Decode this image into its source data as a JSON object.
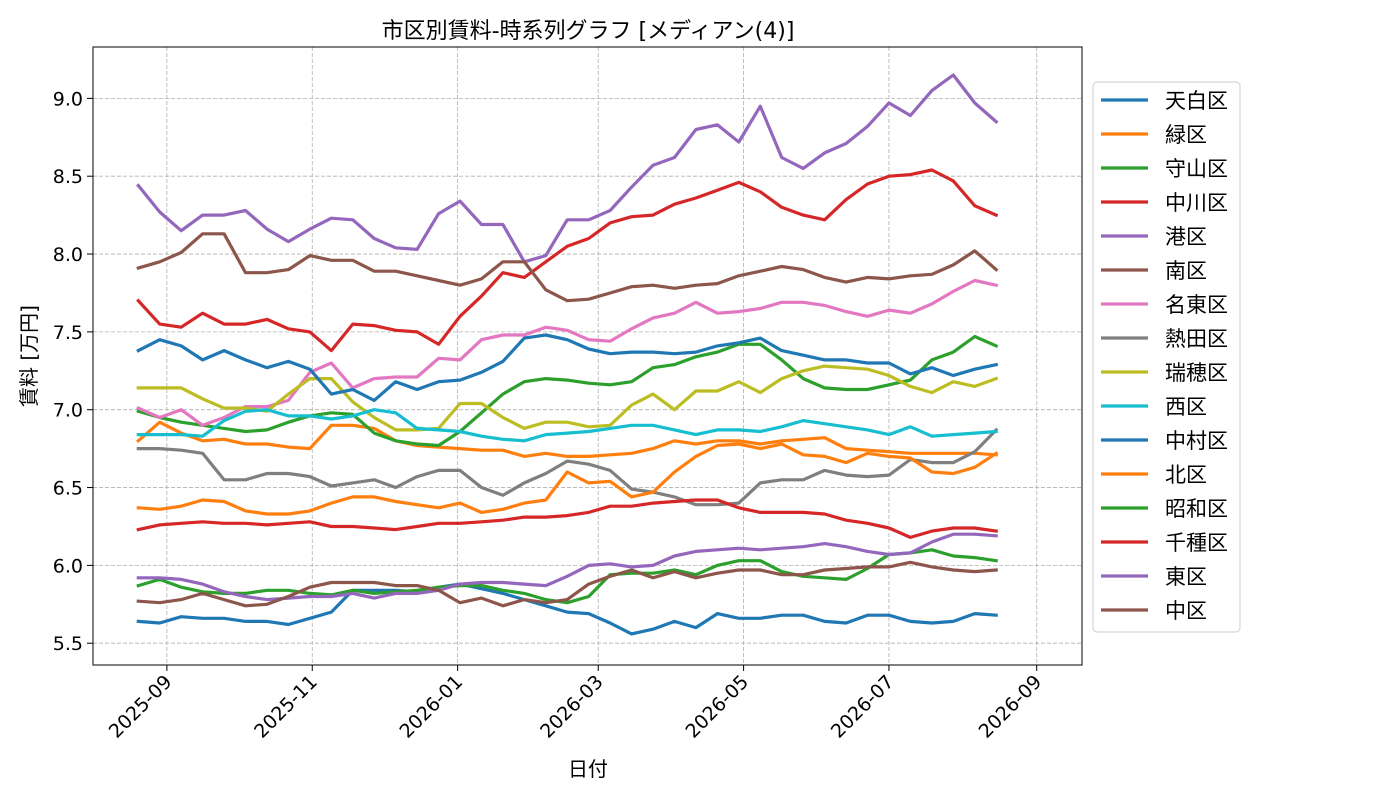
{
  "chart_data": {
    "type": "line",
    "title": "市区別賃料-時系列グラフ [メディアン(4)]",
    "xlabel": "日付",
    "ylabel": "賃料 [万円]",
    "x_ticks": [
      "2025-09",
      "2025-11",
      "2026-01",
      "2026-03",
      "2026-05",
      "2026-07",
      "2026-09"
    ],
    "y_ticks": [
      "5.5",
      "6.0",
      "6.5",
      "7.0",
      "7.5",
      "8.0",
      "8.5",
      "9.0"
    ],
    "xlim": [
      "2025-08-01",
      "2026-09-20"
    ],
    "ylim": [
      5.36,
      9.33
    ],
    "grid": true,
    "legend_position": "right-outside",
    "x": [
      "2025-08-20",
      "2025-08-29",
      "2025-09-07",
      "2025-09-16",
      "2025-09-25",
      "2025-10-04",
      "2025-10-13",
      "2025-10-22",
      "2025-10-31",
      "2025-11-09",
      "2025-11-18",
      "2025-11-27",
      "2025-12-06",
      "2025-12-15",
      "2025-12-24",
      "2026-01-02",
      "2026-01-11",
      "2026-01-20",
      "2026-01-29",
      "2026-02-07",
      "2026-02-16",
      "2026-02-25",
      "2026-03-06",
      "2026-03-15",
      "2026-03-24",
      "2026-04-02",
      "2026-04-11",
      "2026-04-20",
      "2026-04-29",
      "2026-05-08",
      "2026-05-17",
      "2026-05-26",
      "2026-06-04",
      "2026-06-13",
      "2026-06-22",
      "2026-07-01",
      "2026-07-10",
      "2026-07-19",
      "2026-07-28",
      "2026-08-06",
      "2026-08-15"
    ],
    "series": [
      {
        "name": "天白区",
        "color": "#1f77b4",
        "values": [
          5.64,
          5.63,
          5.67,
          5.66,
          5.66,
          5.64,
          5.64,
          5.62,
          5.66,
          5.7,
          5.84,
          5.84,
          5.84,
          5.83,
          5.86,
          5.88,
          5.85,
          5.82,
          5.78,
          5.74,
          5.7,
          5.69,
          5.63,
          5.56,
          5.59,
          5.64,
          5.6,
          5.69,
          5.66,
          5.66,
          5.68,
          5.68,
          5.64,
          5.63,
          5.68,
          5.68,
          5.64,
          5.63,
          5.64,
          5.69,
          5.68
        ]
      },
      {
        "name": "緑区",
        "color": "#ff7f0e",
        "values": [
          6.8,
          6.92,
          6.85,
          6.8,
          6.81,
          6.78,
          6.78,
          6.76,
          6.75,
          6.9,
          6.9,
          6.88,
          6.8,
          6.77,
          6.76,
          6.75,
          6.74,
          6.74,
          6.7,
          6.72,
          6.7,
          6.7,
          6.71,
          6.72,
          6.75,
          6.8,
          6.78,
          6.8,
          6.8,
          6.78,
          6.8,
          6.81,
          6.82,
          6.75,
          6.74,
          6.73,
          6.72,
          6.72,
          6.72,
          6.72,
          6.71
        ]
      },
      {
        "name": "守山区",
        "color": "#2ca02c",
        "values": [
          6.99,
          6.95,
          6.92,
          6.9,
          6.88,
          6.86,
          6.87,
          6.92,
          6.96,
          6.98,
          6.97,
          6.85,
          6.8,
          6.78,
          6.77,
          6.86,
          6.98,
          7.1,
          7.18,
          7.2,
          7.19,
          7.17,
          7.16,
          7.18,
          7.27,
          7.29,
          7.34,
          7.37,
          7.42,
          7.42,
          7.32,
          7.2,
          7.14,
          7.13,
          7.13,
          7.16,
          7.19,
          7.32,
          7.37,
          7.47,
          7.41
        ]
      },
      {
        "name": "中川区",
        "color": "#d62728",
        "values": [
          7.7,
          7.55,
          7.53,
          7.62,
          7.55,
          7.55,
          7.58,
          7.52,
          7.5,
          7.38,
          7.55,
          7.54,
          7.51,
          7.5,
          7.42,
          7.6,
          7.73,
          7.88,
          7.85,
          7.95,
          8.05,
          8.1,
          8.2,
          8.24,
          8.25,
          8.32,
          8.36,
          8.41,
          8.46,
          8.4,
          8.3,
          8.25,
          8.22,
          8.35,
          8.45,
          8.5,
          8.51,
          8.54,
          8.47,
          8.31,
          8.25
        ]
      },
      {
        "name": "港区",
        "color": "#9467bd",
        "values": [
          8.44,
          8.27,
          8.15,
          8.25,
          8.25,
          8.28,
          8.16,
          8.08,
          8.16,
          8.23,
          8.22,
          8.1,
          8.04,
          8.03,
          8.26,
          8.34,
          8.19,
          8.19,
          7.95,
          7.99,
          8.22,
          8.22,
          8.28,
          8.43,
          8.57,
          8.62,
          8.8,
          8.83,
          8.72,
          8.95,
          8.62,
          8.55,
          8.65,
          8.71,
          8.82,
          8.97,
          8.89,
          9.05,
          9.15,
          8.97,
          8.85
        ]
      },
      {
        "name": "南区",
        "color": "#8c564b",
        "values": [
          7.91,
          7.95,
          8.01,
          8.13,
          8.13,
          7.88,
          7.88,
          7.9,
          7.99,
          7.96,
          7.96,
          7.89,
          7.89,
          7.86,
          7.83,
          7.8,
          7.84,
          7.95,
          7.95,
          7.77,
          7.7,
          7.71,
          7.75,
          7.79,
          7.8,
          7.78,
          7.8,
          7.81,
          7.86,
          7.89,
          7.92,
          7.9,
          7.85,
          7.82,
          7.85,
          7.84,
          7.86,
          7.87,
          7.93,
          8.02,
          7.9
        ]
      },
      {
        "name": "名東区",
        "color": "#e377c2",
        "values": [
          7.01,
          6.95,
          7.0,
          6.9,
          6.95,
          7.02,
          7.02,
          7.06,
          7.24,
          7.3,
          7.14,
          7.2,
          7.21,
          7.21,
          7.33,
          7.32,
          7.45,
          7.48,
          7.48,
          7.53,
          7.51,
          7.45,
          7.44,
          7.52,
          7.59,
          7.62,
          7.69,
          7.62,
          7.63,
          7.65,
          7.69,
          7.69,
          7.67,
          7.63,
          7.6,
          7.64,
          7.62,
          7.68,
          7.76,
          7.83,
          7.8
        ]
      },
      {
        "name": "熱田区",
        "color": "#7f7f7f",
        "values": [
          6.75,
          6.75,
          6.74,
          6.72,
          6.55,
          6.55,
          6.59,
          6.59,
          6.57,
          6.51,
          6.53,
          6.55,
          6.5,
          6.57,
          6.61,
          6.61,
          6.5,
          6.45,
          6.53,
          6.59,
          6.67,
          6.65,
          6.61,
          6.49,
          6.47,
          6.44,
          6.39,
          6.39,
          6.4,
          6.53,
          6.55,
          6.55,
          6.61,
          6.58,
          6.57,
          6.58,
          6.68,
          6.66,
          6.66,
          6.73,
          6.87
        ]
      },
      {
        "name": "瑞穂区",
        "color": "#bcbd22",
        "values": [
          7.14,
          7.14,
          7.14,
          7.07,
          7.01,
          7.01,
          6.99,
          7.1,
          7.2,
          7.2,
          7.05,
          6.95,
          6.87,
          6.87,
          6.88,
          7.04,
          7.04,
          6.95,
          6.88,
          6.92,
          6.92,
          6.89,
          6.9,
          7.03,
          7.1,
          7.0,
          7.12,
          7.12,
          7.18,
          7.11,
          7.2,
          7.25,
          7.28,
          7.27,
          7.26,
          7.22,
          7.15,
          7.11,
          7.18,
          7.15,
          7.2
        ]
      },
      {
        "name": "西区",
        "color": "#17becf",
        "values": [
          6.84,
          6.84,
          6.84,
          6.83,
          6.93,
          6.99,
          7.0,
          6.96,
          6.96,
          6.94,
          6.96,
          7.0,
          6.98,
          6.88,
          6.87,
          6.86,
          6.83,
          6.81,
          6.8,
          6.84,
          6.85,
          6.86,
          6.88,
          6.9,
          6.9,
          6.87,
          6.84,
          6.87,
          6.87,
          6.86,
          6.89,
          6.93,
          6.91,
          6.89,
          6.87,
          6.84,
          6.89,
          6.83,
          6.84,
          6.85,
          6.86
        ]
      },
      {
        "name": "中村区",
        "color": "#1f77b4",
        "values": [
          7.38,
          7.45,
          7.41,
          7.32,
          7.38,
          7.32,
          7.27,
          7.31,
          7.26,
          7.1,
          7.13,
          7.06,
          7.18,
          7.13,
          7.18,
          7.19,
          7.24,
          7.31,
          7.46,
          7.48,
          7.45,
          7.39,
          7.36,
          7.37,
          7.37,
          7.36,
          7.37,
          7.41,
          7.43,
          7.46,
          7.38,
          7.35,
          7.32,
          7.32,
          7.3,
          7.3,
          7.23,
          7.27,
          7.22,
          7.26,
          7.29
        ]
      },
      {
        "name": "北区",
        "color": "#ff7f0e",
        "values": [
          6.37,
          6.36,
          6.38,
          6.42,
          6.41,
          6.35,
          6.33,
          6.33,
          6.35,
          6.4,
          6.44,
          6.44,
          6.41,
          6.39,
          6.37,
          6.4,
          6.34,
          6.36,
          6.4,
          6.42,
          6.6,
          6.53,
          6.54,
          6.44,
          6.47,
          6.6,
          6.7,
          6.77,
          6.78,
          6.75,
          6.78,
          6.71,
          6.7,
          6.66,
          6.72,
          6.7,
          6.69,
          6.6,
          6.59,
          6.63,
          6.72
        ]
      },
      {
        "name": "昭和区",
        "color": "#2ca02c",
        "values": [
          5.87,
          5.91,
          5.86,
          5.83,
          5.82,
          5.82,
          5.84,
          5.84,
          5.82,
          5.81,
          5.84,
          5.82,
          5.83,
          5.84,
          5.86,
          5.87,
          5.87,
          5.84,
          5.82,
          5.78,
          5.76,
          5.8,
          5.94,
          5.95,
          5.95,
          5.97,
          5.94,
          6.0,
          6.03,
          6.03,
          5.96,
          5.93,
          5.92,
          5.91,
          5.98,
          6.07,
          6.08,
          6.1,
          6.06,
          6.05,
          6.03
        ]
      },
      {
        "name": "千種区",
        "color": "#d62728",
        "values": [
          6.23,
          6.26,
          6.27,
          6.28,
          6.27,
          6.27,
          6.26,
          6.27,
          6.28,
          6.25,
          6.25,
          6.24,
          6.23,
          6.25,
          6.27,
          6.27,
          6.28,
          6.29,
          6.31,
          6.31,
          6.32,
          6.34,
          6.38,
          6.38,
          6.4,
          6.41,
          6.42,
          6.42,
          6.37,
          6.34,
          6.34,
          6.34,
          6.33,
          6.29,
          6.27,
          6.24,
          6.18,
          6.22,
          6.24,
          6.24,
          6.22
        ]
      },
      {
        "name": "東区",
        "color": "#9467bd",
        "values": [
          5.92,
          5.92,
          5.91,
          5.88,
          5.83,
          5.8,
          5.78,
          5.79,
          5.8,
          5.8,
          5.82,
          5.79,
          5.82,
          5.82,
          5.84,
          5.88,
          5.89,
          5.89,
          5.88,
          5.87,
          5.93,
          6.0,
          6.01,
          5.99,
          6.0,
          6.06,
          6.09,
          6.1,
          6.11,
          6.1,
          6.11,
          6.12,
          6.14,
          6.12,
          6.09,
          6.07,
          6.08,
          6.15,
          6.2,
          6.2,
          6.19
        ]
      },
      {
        "name": "中区",
        "color": "#8c564b",
        "values": [
          5.77,
          5.76,
          5.78,
          5.82,
          5.78,
          5.74,
          5.75,
          5.8,
          5.86,
          5.89,
          5.89,
          5.89,
          5.87,
          5.87,
          5.84,
          5.76,
          5.79,
          5.74,
          5.78,
          5.76,
          5.78,
          5.88,
          5.93,
          5.97,
          5.92,
          5.96,
          5.92,
          5.95,
          5.97,
          5.97,
          5.94,
          5.94,
          5.97,
          5.98,
          5.99,
          5.99,
          6.02,
          5.99,
          5.97,
          5.96,
          5.97
        ]
      }
    ]
  }
}
